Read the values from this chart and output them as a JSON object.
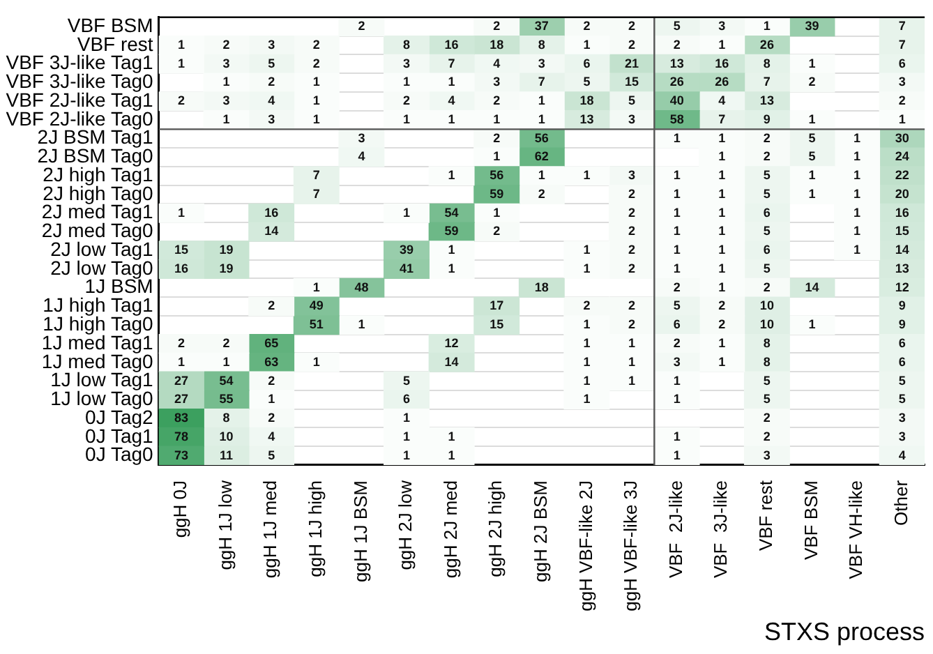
{
  "chart_data": {
    "type": "heatmap",
    "xlabel": "STXS process",
    "data_labels": true,
    "grid": "y",
    "categories": [
      "ggH 0J",
      "ggH 1J low",
      "ggH 1J med",
      "ggH 1J high",
      "ggH 1J BSM",
      "ggH 2J low",
      "ggH 2J med",
      "ggH 2J high",
      "ggH 2J BSM",
      "ggH VBF-like 2J",
      "ggH VBF-like 3J",
      "VBF  2J-like",
      "VBF  3J-like",
      "VBF rest",
      "VBF BSM",
      "VBF VH-like",
      "Other"
    ],
    "y_categories": [
      "VBF BSM",
      "VBF rest",
      "VBF 3J-like Tag1",
      "VBF 3J-like Tag0",
      "VBF 2J-like Tag1",
      "VBF 2J-like Tag0",
      "2J BSM Tag1",
      "2J BSM Tag0",
      "2J high Tag1",
      "2J high Tag0",
      "2J med Tag1",
      "2J med Tag0",
      "2J low Tag1",
      "2J low Tag0",
      "1J BSM",
      "1J high Tag1",
      "1J high Tag0",
      "1J med Tag1",
      "1J med Tag0",
      "1J low Tag1",
      "1J low Tag0",
      "0J Tag2",
      "0J Tag1",
      "0J Tag0"
    ],
    "cells": [
      [
        null,
        null,
        null,
        null,
        2,
        null,
        null,
        2,
        37,
        2,
        2,
        5,
        3,
        1,
        39,
        null,
        7
      ],
      [
        1,
        2,
        3,
        2,
        null,
        8,
        16,
        18,
        8,
        1,
        2,
        2,
        1,
        26,
        null,
        null,
        7
      ],
      [
        1,
        3,
        5,
        2,
        null,
        3,
        7,
        4,
        3,
        6,
        21,
        13,
        16,
        8,
        1,
        null,
        6
      ],
      [
        null,
        1,
        2,
        1,
        null,
        1,
        1,
        3,
        7,
        5,
        15,
        26,
        26,
        7,
        2,
        null,
        3
      ],
      [
        2,
        3,
        4,
        1,
        null,
        2,
        4,
        2,
        1,
        18,
        5,
        40,
        4,
        13,
        null,
        null,
        2
      ],
      [
        null,
        1,
        3,
        1,
        null,
        1,
        1,
        1,
        1,
        13,
        3,
        58,
        7,
        9,
        1,
        null,
        1
      ],
      [
        null,
        null,
        null,
        null,
        3,
        null,
        null,
        2,
        56,
        null,
        null,
        1,
        1,
        2,
        5,
        1,
        30
      ],
      [
        null,
        null,
        null,
        null,
        4,
        null,
        null,
        1,
        62,
        null,
        null,
        null,
        1,
        2,
        5,
        1,
        24
      ],
      [
        null,
        null,
        null,
        7,
        null,
        null,
        1,
        56,
        1,
        1,
        3,
        1,
        1,
        5,
        1,
        1,
        22
      ],
      [
        null,
        null,
        null,
        7,
        null,
        null,
        null,
        59,
        2,
        null,
        2,
        1,
        1,
        5,
        1,
        1,
        20
      ],
      [
        1,
        null,
        16,
        null,
        null,
        1,
        54,
        1,
        null,
        null,
        2,
        1,
        1,
        6,
        null,
        1,
        16
      ],
      [
        null,
        null,
        14,
        null,
        null,
        null,
        59,
        2,
        null,
        null,
        2,
        1,
        1,
        5,
        null,
        1,
        15
      ],
      [
        15,
        19,
        null,
        null,
        null,
        39,
        1,
        null,
        null,
        1,
        2,
        1,
        1,
        6,
        null,
        1,
        14
      ],
      [
        16,
        19,
        null,
        null,
        null,
        41,
        1,
        null,
        null,
        1,
        2,
        1,
        1,
        5,
        null,
        null,
        13
      ],
      [
        null,
        null,
        null,
        1,
        48,
        null,
        null,
        null,
        18,
        null,
        null,
        2,
        1,
        2,
        14,
        null,
        12
      ],
      [
        null,
        null,
        2,
        49,
        null,
        null,
        null,
        17,
        null,
        2,
        2,
        5,
        2,
        10,
        null,
        null,
        9
      ],
      [
        null,
        null,
        null,
        51,
        1,
        null,
        null,
        15,
        null,
        1,
        2,
        6,
        2,
        10,
        1,
        null,
        9
      ],
      [
        2,
        2,
        65,
        null,
        null,
        null,
        12,
        null,
        null,
        1,
        1,
        2,
        1,
        8,
        null,
        null,
        6
      ],
      [
        1,
        1,
        63,
        1,
        null,
        null,
        14,
        null,
        null,
        1,
        1,
        3,
        1,
        8,
        null,
        null,
        6
      ],
      [
        27,
        54,
        2,
        null,
        null,
        5,
        null,
        null,
        null,
        1,
        1,
        1,
        null,
        5,
        null,
        null,
        5
      ],
      [
        27,
        55,
        1,
        null,
        null,
        6,
        null,
        null,
        null,
        1,
        null,
        1,
        null,
        5,
        null,
        null,
        5
      ],
      [
        83,
        8,
        2,
        null,
        null,
        1,
        null,
        null,
        null,
        null,
        null,
        null,
        null,
        2,
        null,
        null,
        3
      ],
      [
        78,
        10,
        4,
        null,
        null,
        1,
        1,
        null,
        null,
        null,
        null,
        1,
        null,
        2,
        null,
        null,
        3
      ],
      [
        73,
        11,
        5,
        null,
        null,
        1,
        1,
        null,
        null,
        null,
        null,
        1,
        null,
        3,
        null,
        null,
        4
      ]
    ]
  }
}
